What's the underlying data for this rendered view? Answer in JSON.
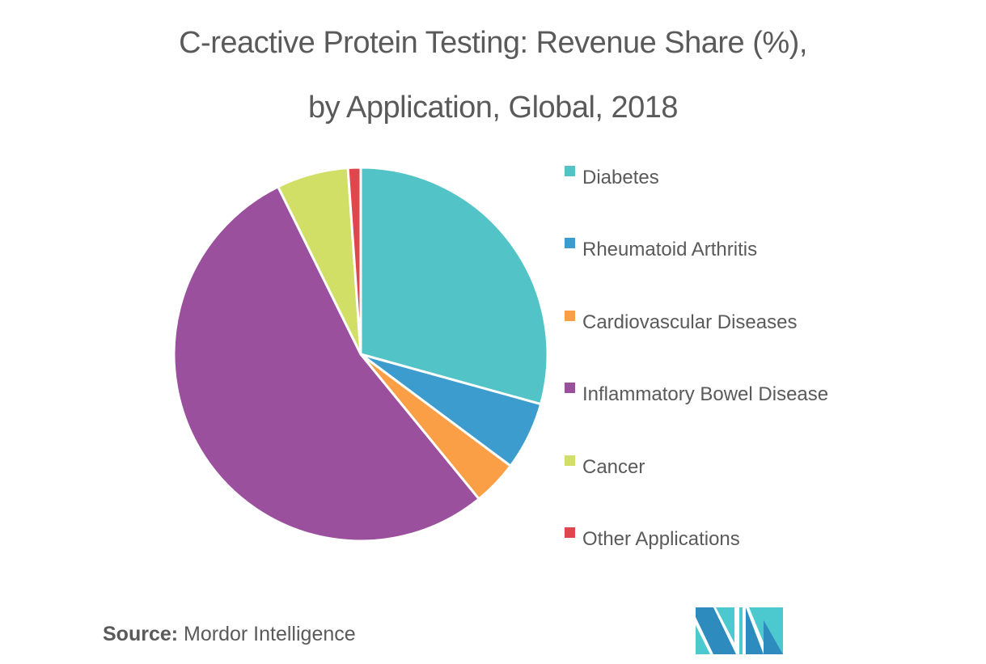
{
  "title": {
    "line1": "C-reactive Protein Testing: Revenue Share (%),",
    "line2": "by Application, Global, 2018"
  },
  "legend": {
    "items": [
      {
        "label": "Diabetes",
        "color": "#52c3c6"
      },
      {
        "label": "Rheumatoid Arthritis",
        "color": "#3b9ccd"
      },
      {
        "label": "Cardiovascular Diseases",
        "color": "#fb9f46"
      },
      {
        "label": "Inflammatory Bowel Disease",
        "color": "#9b509e"
      },
      {
        "label": "Cancer",
        "color": "#d2df67"
      },
      {
        "label": "Other Applications",
        "color": "#e0474c"
      }
    ]
  },
  "source": {
    "label": "Source:",
    "value": "Mordor Intelligence"
  },
  "logo": {
    "dark": "#2e8bbd",
    "light": "#4cc9cf"
  },
  "chart_data": {
    "type": "pie",
    "title": "C-reactive Protein Testing: Revenue Share (%), by Application, Global, 2018",
    "categories": [
      "Diabetes",
      "Rheumatoid Arthritis",
      "Cardiovascular Diseases",
      "Inflammatory Bowel Disease",
      "Cancer",
      "Other Applications"
    ],
    "values": [
      29.3,
      5.9,
      3.9,
      53.6,
      6.2,
      1.1
    ],
    "colors": [
      "#52c3c6",
      "#3b9ccd",
      "#fb9f46",
      "#9b509e",
      "#d2df67",
      "#e0474c"
    ],
    "start_angle_deg": 0,
    "direction": "clockwise",
    "legend_position": "right",
    "unit": "%"
  }
}
